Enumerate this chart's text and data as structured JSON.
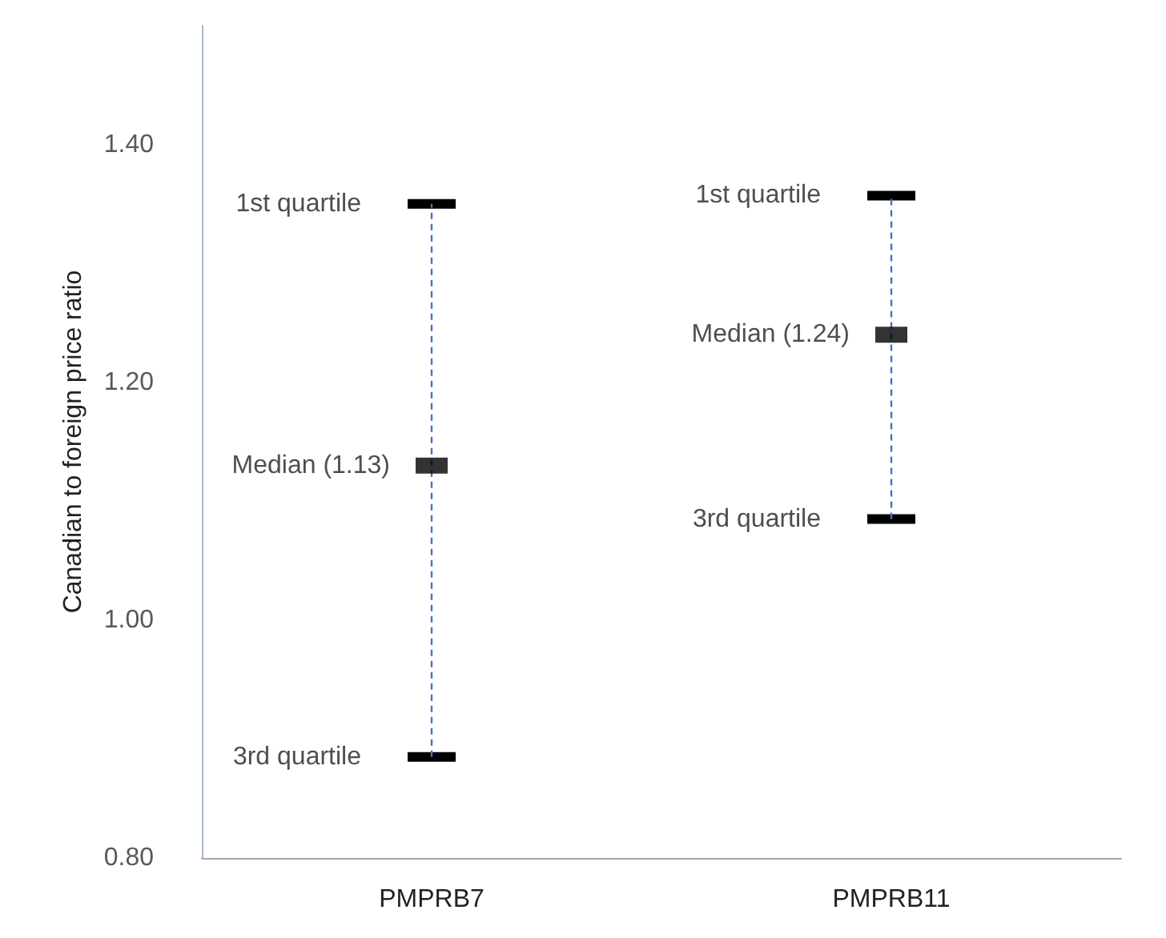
{
  "chart_data": {
    "type": "scatter",
    "ylabel": "Canadian to foreign price ratio",
    "categories": [
      "PMPRB7",
      "PMPRB11"
    ],
    "ylim": [
      0.8,
      1.5
    ],
    "yticks": [
      {
        "value": 0.8,
        "label": "0.80"
      },
      {
        "value": 1.0,
        "label": "1.00"
      },
      {
        "value": 1.2,
        "label": "1.20"
      },
      {
        "value": 1.4,
        "label": "1.40"
      }
    ],
    "grid": false,
    "series": [
      {
        "color": "#000000",
        "values": [
          1.13,
          1.24
        ],
        "value_labels": [
          "Median (1.13)",
          "Median (1.24)"
        ],
        "errors": [
          [
            0.885,
            1.35
          ],
          [
            1.085,
            1.357
          ]
        ]
      }
    ],
    "annotations": [
      {
        "text": "1st quartile",
        "x": "PMPRB7",
        "y": 1.35
      },
      {
        "text": "3rd quartile",
        "x": "PMPRB7",
        "y": 0.885
      },
      {
        "text": "1st quartile",
        "x": "PMPRB11",
        "y": 1.357
      },
      {
        "text": "3rd quartile",
        "x": "PMPRB11",
        "y": 1.085
      }
    ]
  }
}
